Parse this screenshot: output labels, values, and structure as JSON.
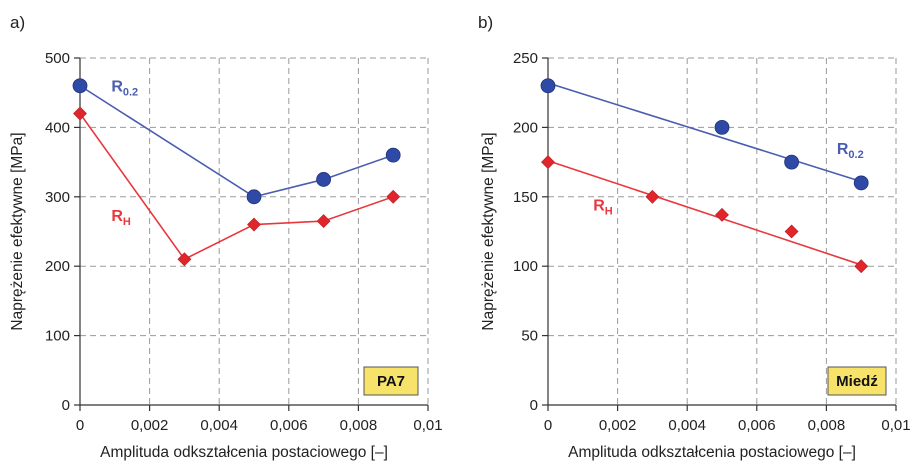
{
  "chart_data": [
    {
      "type": "line",
      "panel_label": "a)",
      "xlabel": "Amplituda odkształcenia postaciowego [–]",
      "ylabel": "Naprężenie efektywne [MPa]",
      "xlim": [
        0,
        0.01
      ],
      "ylim": [
        0,
        500
      ],
      "x_ticks": [
        0,
        0.002,
        0.004,
        0.006,
        0.008,
        0.01
      ],
      "x_tick_labels": [
        "0",
        "0,002",
        "0,004",
        "0,006",
        "0,008",
        "0,01"
      ],
      "y_ticks": [
        0,
        100,
        200,
        300,
        400,
        500
      ],
      "y_tick_labels": [
        "0",
        "100",
        "200",
        "300",
        "400",
        "500"
      ],
      "grid": true,
      "material_label": "PA7",
      "series": [
        {
          "name_main": "R",
          "name_sub": "0.2",
          "color": "#4a5db0",
          "marker": "circle",
          "x": [
            0,
            0.005,
            0.007,
            0.009
          ],
          "y": [
            460,
            300,
            325,
            360
          ],
          "fit": "polyline",
          "label_at": [
            0.0009,
            452
          ]
        },
        {
          "name_main": "R",
          "name_sub": "H",
          "color": "#e8383d",
          "marker": "diamond",
          "x": [
            0,
            0.003,
            0.005,
            0.007,
            0.009
          ],
          "y": [
            420,
            210,
            260,
            265,
            300
          ],
          "fit": "polyline",
          "label_at": [
            0.0009,
            265
          ]
        }
      ]
    },
    {
      "type": "line",
      "panel_label": "b)",
      "xlabel": "Amplituda odkształcenia postaciowego [–]",
      "ylabel": "Naprężenie efektywne [MPa]",
      "xlim": [
        0,
        0.01
      ],
      "ylim": [
        0,
        250
      ],
      "x_ticks": [
        0,
        0.002,
        0.004,
        0.006,
        0.008,
        0.01
      ],
      "x_tick_labels": [
        "0",
        "0,002",
        "0,004",
        "0,006",
        "0,008",
        "0,01"
      ],
      "y_ticks": [
        0,
        50,
        100,
        150,
        200,
        250
      ],
      "y_tick_labels": [
        "0",
        "50",
        "100",
        "150",
        "200",
        "250"
      ],
      "grid": true,
      "material_label": "Miedź",
      "series": [
        {
          "name_main": "R",
          "name_sub": "0.2",
          "color": "#4a5db0",
          "marker": "circle",
          "x": [
            0,
            0.005,
            0.007,
            0.009
          ],
          "y": [
            230,
            200,
            175,
            160
          ],
          "fit": "linear",
          "fit_line": [
            [
              0,
              232
            ],
            [
              0.009,
              161
            ]
          ],
          "label_at": [
            0.0083,
            181
          ]
        },
        {
          "name_main": "R",
          "name_sub": "H",
          "color": "#e8383d",
          "marker": "diamond",
          "x": [
            0,
            0.003,
            0.005,
            0.007,
            0.009
          ],
          "y": [
            175,
            150,
            137,
            125,
            100
          ],
          "fit": "linear",
          "fit_line": [
            [
              0,
              176
            ],
            [
              0.009,
              101
            ]
          ],
          "label_at": [
            0.0013,
            140
          ]
        }
      ]
    }
  ]
}
